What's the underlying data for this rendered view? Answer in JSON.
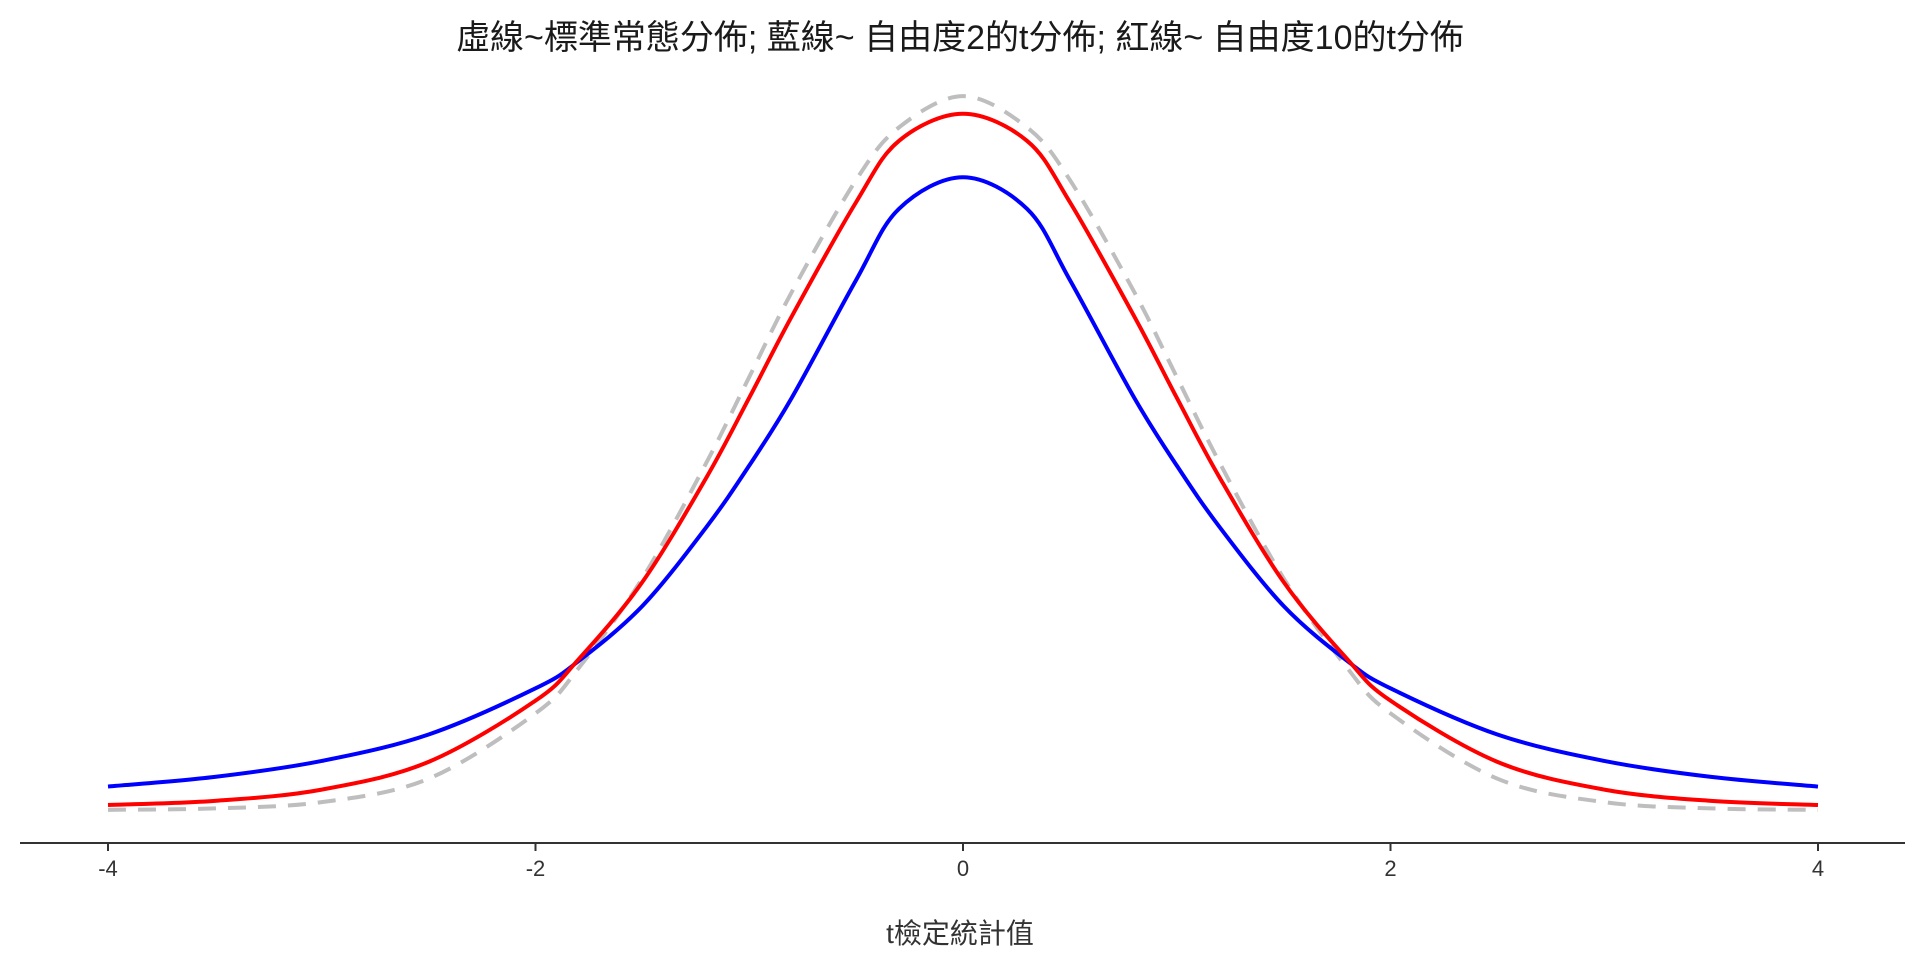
{
  "chart_data": {
    "type": "line",
    "title": "虛線~標準常態分佈; 藍線~ 自由度2的t分佈; 紅線~ 自由度10的t分佈",
    "xlabel": "t檢定統計值",
    "ylabel": "",
    "xlim": [
      -4,
      4
    ],
    "ylim": [
      0,
      0.42
    ],
    "x_ticks": [
      -4,
      -2,
      0,
      2,
      4
    ],
    "x_tick_labels": [
      "-4",
      "-2",
      "0",
      "2",
      "4"
    ],
    "x": [
      -4.0,
      -3.5,
      -3.0,
      -2.5,
      -2.0,
      -1.8,
      -1.5,
      -1.2,
      -1.0,
      -0.8,
      -0.5,
      -0.3,
      0.0,
      0.3,
      0.5,
      0.8,
      1.0,
      1.2,
      1.5,
      1.8,
      2.0,
      2.5,
      3.0,
      3.5,
      4.0
    ],
    "series": [
      {
        "key": "normal",
        "color": "#bebebe",
        "dashed": true,
        "values": [
          0.0001,
          0.0009,
          0.0044,
          0.0175,
          0.054,
          0.079,
          0.1295,
          0.1942,
          0.242,
          0.2897,
          0.3521,
          0.3814,
          0.3989,
          0.3814,
          0.3521,
          0.2897,
          0.242,
          0.1942,
          0.1295,
          0.079,
          0.054,
          0.0175,
          0.0044,
          0.0009,
          0.0001
        ]
      },
      {
        "key": "t2",
        "color": "#0000ff",
        "dashed": false,
        "values": [
          0.0131,
          0.0185,
          0.0274,
          0.0422,
          0.068,
          0.0831,
          0.114,
          0.1582,
          0.1925,
          0.2306,
          0.2962,
          0.3359,
          0.3536,
          0.3359,
          0.2962,
          0.2306,
          0.1925,
          0.1582,
          0.114,
          0.0831,
          0.068,
          0.0422,
          0.0274,
          0.0185,
          0.0131
        ]
      },
      {
        "key": "t10",
        "color": "#ff0000",
        "dashed": false,
        "values": [
          0.0028,
          0.0051,
          0.0114,
          0.0269,
          0.0611,
          0.084,
          0.1274,
          0.1859,
          0.2304,
          0.2761,
          0.3397,
          0.3739,
          0.3891,
          0.3739,
          0.3397,
          0.2761,
          0.2304,
          0.1859,
          0.1274,
          0.084,
          0.0611,
          0.0269,
          0.0114,
          0.0051,
          0.0028
        ]
      }
    ]
  }
}
